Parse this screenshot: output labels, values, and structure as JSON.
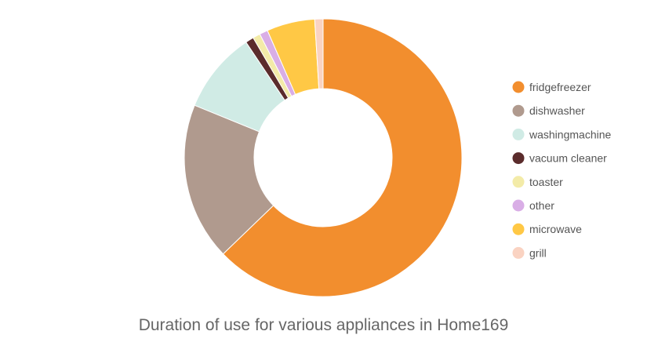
{
  "chart_data": {
    "type": "pie",
    "title": "Duration of use for various appliances in Home169",
    "donut": true,
    "legend_position": "right",
    "slices": [
      {
        "label": "fridgefreezer",
        "value": 65.0,
        "color": "#F28E2E"
      },
      {
        "label": "dishwasher",
        "value": 19.0,
        "color": "#B09A8E"
      },
      {
        "label": "washingmachine",
        "value": 9.8,
        "color": "#D0EBE5"
      },
      {
        "label": "vacuum cleaner",
        "value": 1.0,
        "color": "#5B2C2C"
      },
      {
        "label": "toaster",
        "value": 0.9,
        "color": "#F3EBA8"
      },
      {
        "label": "other",
        "value": 1.0,
        "color": "#D9AEE6"
      },
      {
        "label": "microwave",
        "value": 5.8,
        "color": "#FFC845"
      },
      {
        "label": "grill",
        "value": 1.0,
        "color": "#FAD3C2"
      }
    ]
  }
}
